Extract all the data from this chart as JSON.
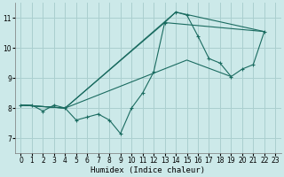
{
  "title": "",
  "xlabel": "Humidex (Indice chaleur)",
  "xlim": [
    -0.5,
    23.5
  ],
  "ylim": [
    6.5,
    11.5
  ],
  "yticks": [
    7,
    8,
    9,
    10,
    11
  ],
  "xticks": [
    0,
    1,
    2,
    3,
    4,
    5,
    6,
    7,
    8,
    9,
    10,
    11,
    12,
    13,
    14,
    15,
    16,
    17,
    18,
    19,
    20,
    21,
    22,
    23
  ],
  "bg_color": "#cce9e9",
  "grid_color": "#aacfcf",
  "line_color": "#1a6b60",
  "main_line": {
    "x": [
      0,
      1,
      2,
      3,
      4,
      5,
      6,
      7,
      8,
      9,
      10,
      11,
      12,
      13,
      14,
      15,
      16,
      17,
      18,
      19,
      20,
      21,
      22
    ],
    "y": [
      8.1,
      8.1,
      7.9,
      8.1,
      8.0,
      7.6,
      7.7,
      7.8,
      7.6,
      7.15,
      8.0,
      8.5,
      9.2,
      10.85,
      11.2,
      11.1,
      10.4,
      9.65,
      9.5,
      9.05,
      9.3,
      9.45,
      10.55
    ]
  },
  "straight_lines": [
    {
      "x": [
        0,
        4,
        13,
        22
      ],
      "y": [
        8.1,
        8.0,
        10.85,
        10.55
      ]
    },
    {
      "x": [
        0,
        4,
        14,
        22
      ],
      "y": [
        8.1,
        8.0,
        11.2,
        10.55
      ]
    },
    {
      "x": [
        0,
        4,
        15,
        19
      ],
      "y": [
        8.1,
        8.0,
        9.6,
        9.05
      ]
    }
  ]
}
